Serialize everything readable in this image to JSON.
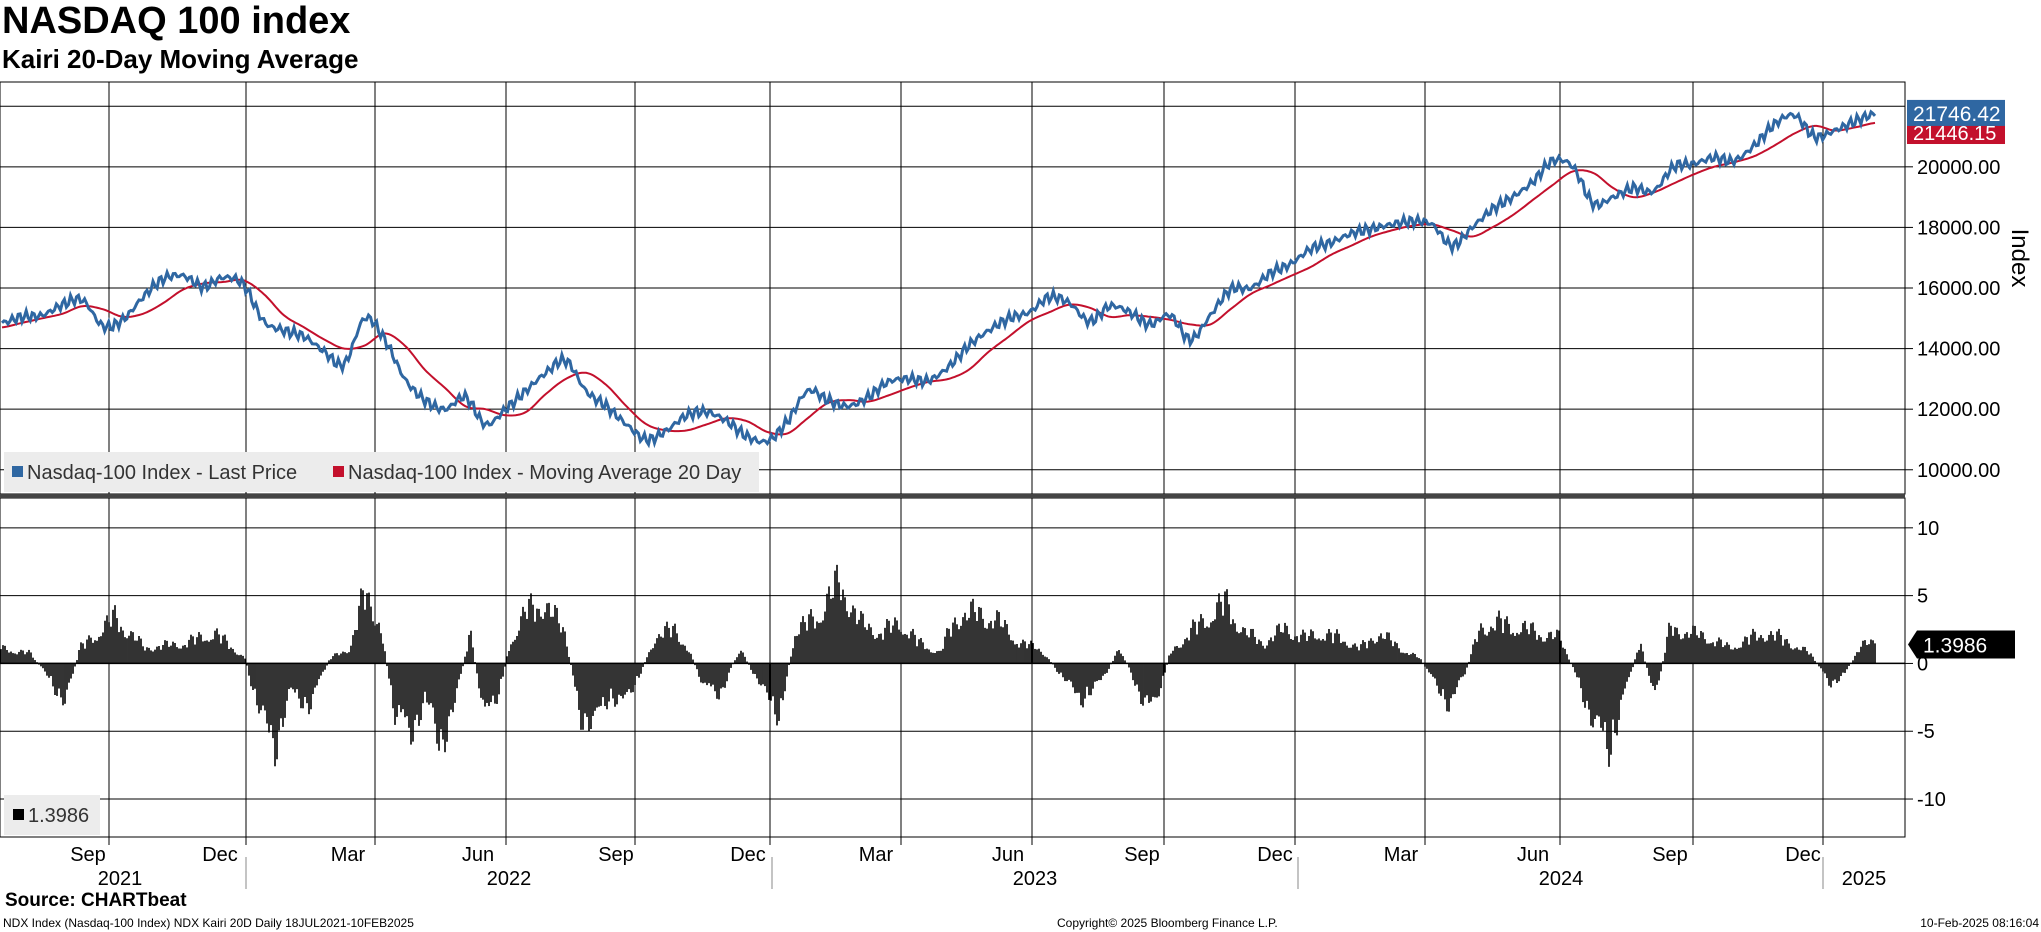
{
  "title": "NASDAQ 100 index",
  "subtitle": "Kairi 20-Day Moving Average",
  "footer": {
    "source": "Source: CHARTbeat",
    "left": "NDX Index (Nasdaq-100 Index) NDX Kairi 20D  Daily 18JUL2021-10FEB2025",
    "center": "Copyright© 2025 Bloomberg Finance L.P.",
    "right": "10-Feb-2025 08:16:04"
  },
  "colors": {
    "last_price": "#2f67a2",
    "moving_average": "#c3102c",
    "kairi": "#000000",
    "grid": "#000000",
    "legend_bg": "#ececec"
  },
  "chart_data": [
    {
      "type": "line",
      "title": "",
      "ylabel": "Index",
      "ylim": [
        9200,
        22800
      ],
      "yticks": [
        "10000.00",
        "12000.00",
        "14000.00",
        "16000.00",
        "18000.00",
        "20000.00"
      ],
      "grid": true,
      "legend_position": "bottom-left",
      "x": [
        "2021-07-19",
        "2021-08-02",
        "2021-08-16",
        "2021-08-30",
        "2021-09-13",
        "2021-09-27",
        "2021-10-11",
        "2021-10-25",
        "2021-11-08",
        "2021-11-22",
        "2021-12-06",
        "2021-12-20",
        "2022-01-03",
        "2022-01-17",
        "2022-01-31",
        "2022-02-14",
        "2022-02-28",
        "2022-03-14",
        "2022-03-28",
        "2022-04-11",
        "2022-04-25",
        "2022-05-09",
        "2022-05-23",
        "2022-06-06",
        "2022-06-20",
        "2022-07-04",
        "2022-07-18",
        "2022-08-01",
        "2022-08-15",
        "2022-08-29",
        "2022-09-12",
        "2022-09-26",
        "2022-10-10",
        "2022-10-24",
        "2022-11-07",
        "2022-11-21",
        "2022-12-05",
        "2022-12-19",
        "2023-01-02",
        "2023-01-16",
        "2023-01-30",
        "2023-02-13",
        "2023-02-27",
        "2023-03-13",
        "2023-03-27",
        "2023-04-10",
        "2023-04-24",
        "2023-05-08",
        "2023-05-22",
        "2023-06-05",
        "2023-06-19",
        "2023-07-03",
        "2023-07-17",
        "2023-07-31",
        "2023-08-14",
        "2023-08-28",
        "2023-09-11",
        "2023-09-25",
        "2023-10-09",
        "2023-10-23",
        "2023-11-06",
        "2023-11-20",
        "2023-12-04",
        "2023-12-18",
        "2024-01-01",
        "2024-01-15",
        "2024-01-29",
        "2024-02-12",
        "2024-02-26",
        "2024-03-11",
        "2024-03-25",
        "2024-04-08",
        "2024-04-22",
        "2024-05-06",
        "2024-05-20",
        "2024-06-03",
        "2024-06-17",
        "2024-07-01",
        "2024-07-15",
        "2024-07-29",
        "2024-08-12",
        "2024-08-26",
        "2024-09-09",
        "2024-09-23",
        "2024-10-07",
        "2024-10-21",
        "2024-11-04",
        "2024-11-18",
        "2024-12-02",
        "2024-12-16",
        "2024-12-30",
        "2025-01-13",
        "2025-01-27",
        "2025-02-10"
      ],
      "series": [
        {
          "name": "Nasdaq-100 Index - Last Price",
          "color": "#2f67a2",
          "values": [
            14850,
            15050,
            15100,
            15450,
            15600,
            14750,
            14950,
            15700,
            16300,
            16400,
            16050,
            16350,
            16100,
            14900,
            14600,
            14400,
            13900,
            13500,
            15000,
            14300,
            13000,
            12300,
            12000,
            12400,
            11500,
            12000,
            12600,
            13200,
            13600,
            12600,
            12100,
            11500,
            11000,
            11300,
            11800,
            11900,
            11600,
            11100,
            10950,
            11600,
            12600,
            12300,
            12100,
            12400,
            12900,
            13000,
            12950,
            13400,
            14100,
            14600,
            15000,
            15200,
            15700,
            15500,
            14900,
            15400,
            15200,
            14800,
            15100,
            14300,
            15100,
            15950,
            16000,
            16500,
            16800,
            17300,
            17500,
            17800,
            17950,
            18100,
            18200,
            18100,
            17400,
            18000,
            18600,
            19000,
            19500,
            20200,
            20000,
            18800,
            19000,
            19300,
            19200,
            20000,
            20100,
            20300,
            20200,
            20700,
            21400,
            21700,
            21000,
            21200,
            21500,
            21746.42
          ]
        },
        {
          "name": "Nasdaq-100 Index - Moving Average 20 Day",
          "color": "#c3102c",
          "values": [
            14700,
            14850,
            15000,
            15150,
            15400,
            15300,
            15050,
            15150,
            15500,
            15950,
            16150,
            16200,
            16250,
            15800,
            15100,
            14700,
            14300,
            14000,
            14100,
            14500,
            14100,
            13300,
            12700,
            12100,
            12000,
            11800,
            11900,
            12500,
            13000,
            13200,
            12800,
            12100,
            11500,
            11300,
            11300,
            11500,
            11700,
            11600,
            11250,
            11200,
            11700,
            12200,
            12300,
            12250,
            12450,
            12700,
            12900,
            13000,
            13300,
            13900,
            14400,
            14900,
            15200,
            15450,
            15350,
            15050,
            15100,
            15050,
            14950,
            14800,
            14800,
            15300,
            15800,
            16100,
            16400,
            16700,
            17100,
            17400,
            17700,
            17900,
            18050,
            18100,
            17900,
            17700,
            18000,
            18400,
            18900,
            19400,
            19850,
            19800,
            19300,
            19000,
            19150,
            19450,
            19750,
            20000,
            20150,
            20350,
            20700,
            21100,
            21350,
            21200,
            21300,
            21450
          ]
        }
      ],
      "last_value_labels": [
        "21746.42",
        "21446.15"
      ]
    },
    {
      "type": "bar",
      "title": "",
      "ylabel": "",
      "ylim": [
        -12.8,
        12.2
      ],
      "yticks": [
        "10",
        "5",
        "0",
        "-5",
        "-10"
      ],
      "grid": true,
      "legend_position": "bottom-left",
      "series": [
        {
          "name": "1.3986",
          "color": "#000000",
          "anchors": [
            [
              0,
              1.5
            ],
            [
              30,
              1.0
            ],
            [
              50,
              -1.5
            ],
            [
              65,
              -4.0
            ],
            [
              80,
              1.5
            ],
            [
              115,
              4.5
            ],
            [
              145,
              1.5
            ],
            [
              185,
              2.0
            ],
            [
              215,
              3.0
            ],
            [
              245,
              0.5
            ],
            [
              260,
              -5.0
            ],
            [
              275,
              -8.0
            ],
            [
              290,
              -3.0
            ],
            [
              310,
              -4.0
            ],
            [
              330,
              0.5
            ],
            [
              350,
              1.5
            ],
            [
              365,
              7.0
            ],
            [
              380,
              4.0
            ],
            [
              395,
              -5.0
            ],
            [
              410,
              -7.0
            ],
            [
              425,
              -3.5
            ],
            [
              440,
              -8.0
            ],
            [
              455,
              -4.0
            ],
            [
              470,
              3.0
            ],
            [
              485,
              -5.5
            ],
            [
              500,
              -2.5
            ],
            [
              510,
              2.0
            ],
            [
              525,
              5.0
            ],
            [
              545,
              6.0
            ],
            [
              565,
              3.0
            ],
            [
              580,
              -5.0
            ],
            [
              595,
              -6.0
            ],
            [
              610,
              -3.0
            ],
            [
              625,
              -4.0
            ],
            [
              640,
              -1.0
            ],
            [
              655,
              2.5
            ],
            [
              675,
              3.5
            ],
            [
              690,
              1.0
            ],
            [
              705,
              -2.5
            ],
            [
              720,
              -3.0
            ],
            [
              740,
              1.5
            ],
            [
              765,
              -3.0
            ],
            [
              780,
              -5.0
            ],
            [
              795,
              3.0
            ],
            [
              820,
              5.0
            ],
            [
              840,
              8.0
            ],
            [
              860,
              4.0
            ],
            [
              880,
              3.0
            ],
            [
              900,
              4.0
            ],
            [
              920,
              2.0
            ],
            [
              940,
              1.0
            ],
            [
              955,
              4.5
            ],
            [
              980,
              5.0
            ],
            [
              1000,
              4.0
            ],
            [
              1020,
              2.0
            ],
            [
              1040,
              1.5
            ],
            [
              1060,
              -1.0
            ],
            [
              1080,
              -3.5
            ],
            [
              1100,
              -2.0
            ],
            [
              1120,
              1.5
            ],
            [
              1140,
              -3.0
            ],
            [
              1155,
              -4.5
            ],
            [
              1170,
              1.0
            ],
            [
              1195,
              3.5
            ],
            [
              1225,
              6.0
            ],
            [
              1245,
              3.0
            ],
            [
              1265,
              2.0
            ],
            [
              1285,
              3.5
            ],
            [
              1305,
              2.5
            ],
            [
              1320,
              3.0
            ],
            [
              1340,
              2.5
            ],
            [
              1360,
              1.5
            ],
            [
              1380,
              3.0
            ],
            [
              1400,
              1.5
            ],
            [
              1420,
              0.5
            ],
            [
              1435,
              -2.0
            ],
            [
              1450,
              -4.0
            ],
            [
              1465,
              -1.0
            ],
            [
              1480,
              3.5
            ],
            [
              1500,
              4.0
            ],
            [
              1520,
              3.5
            ],
            [
              1540,
              3.0
            ],
            [
              1560,
              2.5
            ],
            [
              1580,
              -2.0
            ],
            [
              1595,
              -6.5
            ],
            [
              1610,
              -8.0
            ],
            [
              1625,
              -3.0
            ],
            [
              1640,
              2.0
            ],
            [
              1655,
              -3.5
            ],
            [
              1670,
              3.5
            ],
            [
              1690,
              3.0
            ],
            [
              1710,
              2.5
            ],
            [
              1730,
              1.5
            ],
            [
              1750,
              2.5
            ],
            [
              1770,
              3.0
            ],
            [
              1790,
              2.0
            ],
            [
              1810,
              1.0
            ],
            [
              1830,
              -2.0
            ],
            [
              1845,
              -1.0
            ],
            [
              1860,
              1.5
            ],
            [
              1875,
              2.5
            ],
            [
              1880,
              1.3986
            ]
          ]
        }
      ],
      "last_value_label": "1.3986"
    }
  ],
  "x_axis": {
    "month_labels": [
      "Sep",
      "Dec",
      "Mar",
      "Jun",
      "Sep",
      "Dec",
      "Mar",
      "Jun",
      "Sep",
      "Dec",
      "Mar",
      "Jun",
      "Sep",
      "Dec"
    ],
    "year_labels": [
      "2021",
      "2022",
      "2023",
      "2024",
      "2025"
    ]
  },
  "legend": {
    "top_items": [
      "Nasdaq-100 Index - Last Price",
      "Nasdaq-100 Index - Moving Average 20 Day"
    ],
    "bottom_item": "1.3986"
  }
}
